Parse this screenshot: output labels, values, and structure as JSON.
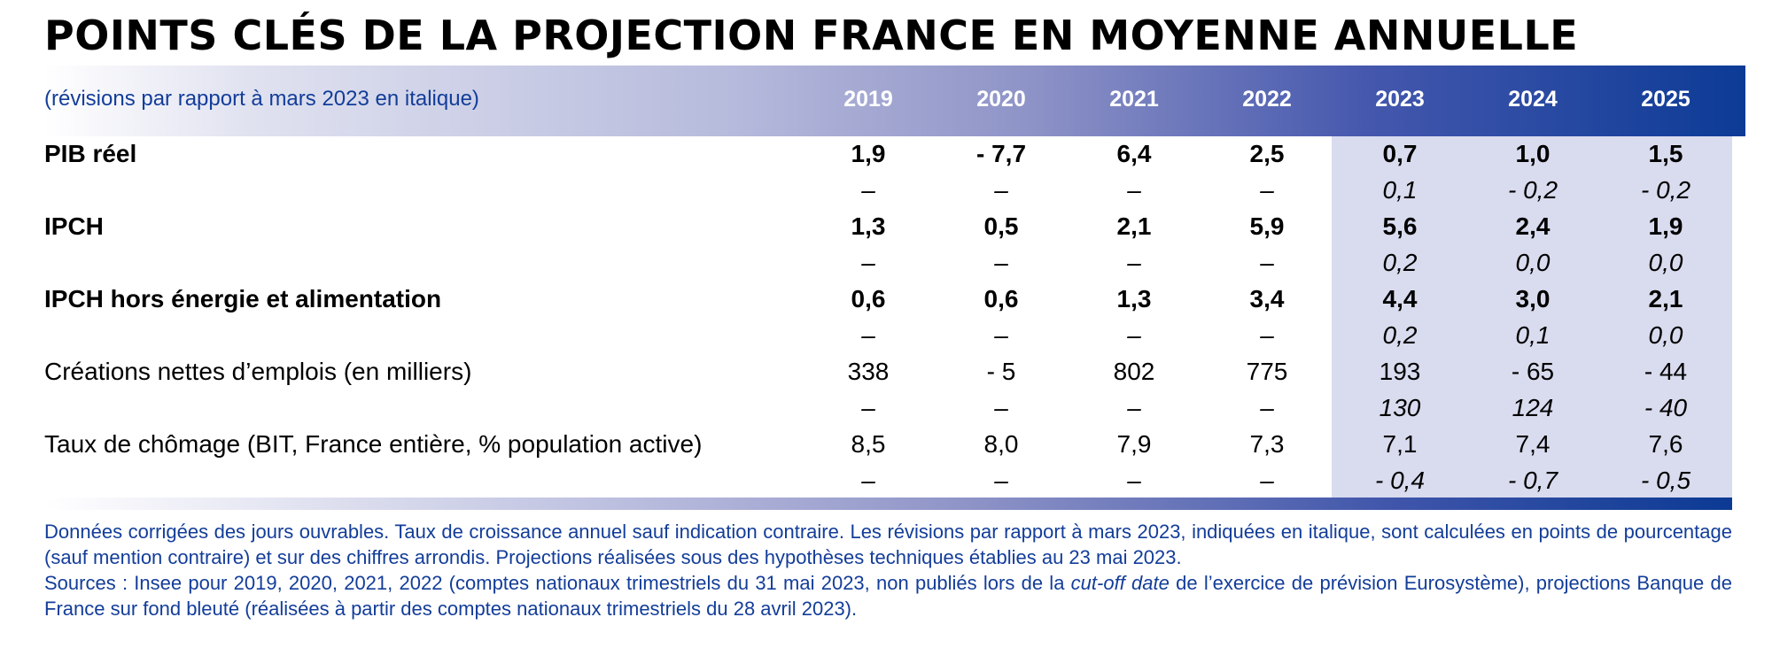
{
  "title": "POINTS CLÉS DE LA PROJECTION FRANCE EN MOYENNE ANNUELLE",
  "subtitle": "(révisions par rapport à mars 2023 en italique)",
  "years": [
    "2019",
    "2020",
    "2021",
    "2022",
    "2023",
    "2024",
    "2025"
  ],
  "rows": [
    {
      "label": "PIB réel",
      "values": [
        "1,9",
        "- 7,7",
        "6,4",
        "2,5",
        "0,7",
        "1,0",
        "1,5"
      ],
      "revisions": [
        "–",
        "–",
        "–",
        "–",
        "0,1",
        "- 0,2",
        "- 0,2"
      ]
    },
    {
      "label": "IPCH",
      "values": [
        "1,3",
        "0,5",
        "2,1",
        "5,9",
        "5,6",
        "2,4",
        "1,9"
      ],
      "revisions": [
        "–",
        "–",
        "–",
        "–",
        "0,2",
        "0,0",
        "0,0"
      ]
    },
    {
      "label": "IPCH hors énergie et alimentation",
      "values": [
        "0,6",
        "0,6",
        "1,3",
        "3,4",
        "4,4",
        "3,0",
        "2,1"
      ],
      "revisions": [
        "–",
        "–",
        "–",
        "–",
        "0,2",
        "0,1",
        "0,0"
      ]
    },
    {
      "label": "Créations nettes d’emplois (en milliers)",
      "values": [
        "338",
        "- 5",
        "802",
        "775",
        "193",
        "- 65",
        "- 44"
      ],
      "revisions": [
        "–",
        "–",
        "–",
        "–",
        "130",
        "124",
        "- 40"
      ]
    },
    {
      "label": "Taux de chômage (BIT, France entière, % population active)",
      "values": [
        "8,5",
        "8,0",
        "7,9",
        "7,3",
        "7,1",
        "7,4",
        "7,6"
      ],
      "revisions": [
        "–",
        "–",
        "–",
        "–",
        "- 0,4",
        "- 0,7",
        "- 0,5"
      ]
    }
  ],
  "notes": {
    "line1": "Données corrigées des jours ouvrables. Taux de croissance annuel sauf indication contraire. Les révisions par rapport à mars 2023, indiquées en italique, sont calculées en points de pourcentage (sauf mention contraire) et sur des chiffres arrondis. Projections réalisées sous des hypothèses techniques établies au 23 mai 2023.",
    "sources_before": "Sources : Insee pour 2019, 2020, 2021, 2022 (comptes nationaux trimestriels du 31 mai 2023, non publiés lors de la ",
    "sources_italic": "cut-off date",
    "sources_after": " de l’exercice de prévision Eurosystème), projections Banque de France sur fond bleuté (réalisées à partir des comptes nationaux trimestriels du 28 avril 2023)."
  },
  "colors": {
    "header_dark": "#0c3b96",
    "text_blue": "#133d99",
    "projection_shade": "#d9dbee"
  }
}
